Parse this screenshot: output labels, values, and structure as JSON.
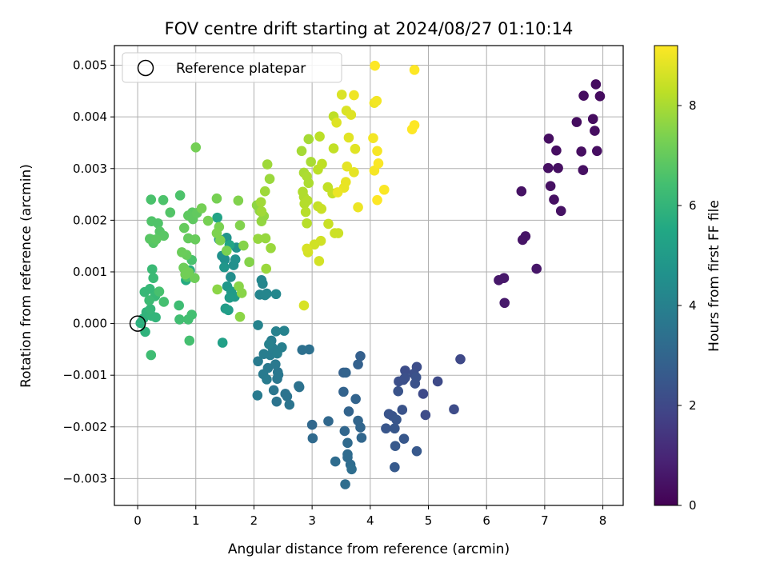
{
  "chart_data": {
    "type": "scatter",
    "title": "FOV centre drift starting at 2024/08/27 01:10:14",
    "xlabel": "Angular distance from reference (arcmin)",
    "ylabel": "Rotation from reference (arcmin)",
    "xlim": [
      -0.4,
      8.35
    ],
    "ylim": [
      -0.00352,
      0.00538
    ],
    "xticks": [
      0,
      1,
      2,
      3,
      4,
      5,
      6,
      7,
      8
    ],
    "xtick_labels": [
      "0",
      "1",
      "2",
      "3",
      "4",
      "5",
      "6",
      "7",
      "8"
    ],
    "yticks": [
      -0.003,
      -0.002,
      -0.001,
      0.0,
      0.001,
      0.002,
      0.003,
      0.004,
      0.005
    ],
    "ytick_labels": [
      "−0.003",
      "−0.002",
      "−0.001",
      "0.000",
      "0.001",
      "0.002",
      "0.003",
      "0.004",
      "0.005"
    ],
    "grid": true,
    "legend": {
      "placement": "top-left",
      "entries": [
        "Reference platepar"
      ]
    },
    "reference_point": {
      "x": 0,
      "y": 0
    },
    "colorbar": {
      "label": "Hours from first FF file",
      "colormap": "viridis",
      "range": [
        0,
        9.2
      ],
      "ticks": [
        0,
        2,
        4,
        6,
        8
      ],
      "tick_labels": [
        "0",
        "2",
        "4",
        "6",
        "8"
      ]
    },
    "points": [
      [
        7.88,
        0.00463,
        0.3
      ],
      [
        7.95,
        0.0044,
        0.3
      ],
      [
        7.67,
        0.00441,
        0.3
      ],
      [
        7.83,
        0.00396,
        0.3
      ],
      [
        7.55,
        0.0039,
        0.3
      ],
      [
        7.86,
        0.00373,
        0.35
      ],
      [
        7.07,
        0.00358,
        0.35
      ],
      [
        7.2,
        0.00335,
        0.35
      ],
      [
        7.63,
        0.00333,
        0.35
      ],
      [
        7.9,
        0.00334,
        0.35
      ],
      [
        7.06,
        0.00301,
        0.4
      ],
      [
        7.23,
        0.00301,
        0.4
      ],
      [
        7.66,
        0.00297,
        0.4
      ],
      [
        7.1,
        0.00266,
        0.4
      ],
      [
        7.16,
        0.0024,
        0.4
      ],
      [
        6.6,
        0.00256,
        0.45
      ],
      [
        7.28,
        0.00218,
        0.45
      ],
      [
        6.67,
        0.00169,
        0.5
      ],
      [
        6.62,
        0.00162,
        0.5
      ],
      [
        6.86,
        0.00106,
        0.55
      ],
      [
        6.3,
        0.00088,
        0.6
      ],
      [
        6.21,
        0.00084,
        0.6
      ],
      [
        6.31,
        0.0004,
        0.65
      ],
      [
        5.55,
        -0.00069,
        2.0
      ],
      [
        5.16,
        -0.00112,
        2.05
      ],
      [
        4.91,
        -0.00136,
        2.05
      ],
      [
        5.44,
        -0.00166,
        2.1
      ],
      [
        4.95,
        -0.00177,
        2.1
      ],
      [
        4.8,
        -0.00084,
        2.15
      ],
      [
        4.6,
        -0.00091,
        2.15
      ],
      [
        4.75,
        -0.00097,
        2.2
      ],
      [
        4.57,
        -0.00109,
        2.2
      ],
      [
        4.49,
        -0.00112,
        2.25
      ],
      [
        4.6,
        -0.00105,
        2.25
      ],
      [
        4.79,
        -0.00104,
        2.3
      ],
      [
        4.77,
        -0.00116,
        2.3
      ],
      [
        4.48,
        -0.00131,
        2.35
      ],
      [
        4.55,
        -0.00167,
        2.35
      ],
      [
        4.38,
        -0.00179,
        2.4
      ],
      [
        4.32,
        -0.00175,
        2.4
      ],
      [
        4.45,
        -0.00186,
        2.45
      ],
      [
        4.27,
        -0.00203,
        2.45
      ],
      [
        4.42,
        -0.00203,
        2.5
      ],
      [
        4.58,
        -0.00223,
        2.5
      ],
      [
        4.43,
        -0.00237,
        2.55
      ],
      [
        4.8,
        -0.00247,
        2.55
      ],
      [
        4.42,
        -0.00278,
        2.6
      ],
      [
        3.83,
        -0.00063,
        2.8
      ],
      [
        3.79,
        -0.00079,
        2.85
      ],
      [
        3.54,
        -0.00095,
        2.85
      ],
      [
        3.58,
        -0.00095,
        2.9
      ],
      [
        3.54,
        -0.00132,
        2.9
      ],
      [
        3.75,
        -0.00146,
        2.95
      ],
      [
        3.63,
        -0.0017,
        2.95
      ],
      [
        3.79,
        -0.00188,
        3.0
      ],
      [
        3.83,
        -0.00201,
        3.0
      ],
      [
        3.85,
        -0.00221,
        3.05
      ],
      [
        3.56,
        -0.00208,
        3.05
      ],
      [
        3.28,
        -0.00189,
        3.1
      ],
      [
        3.0,
        -0.00196,
        3.1
      ],
      [
        3.01,
        -0.00222,
        3.15
      ],
      [
        3.61,
        -0.00231,
        3.15
      ],
      [
        3.61,
        -0.00253,
        3.2
      ],
      [
        3.61,
        -0.00259,
        3.2
      ],
      [
        3.4,
        -0.00267,
        3.25
      ],
      [
        3.66,
        -0.00273,
        3.25
      ],
      [
        3.68,
        -0.00282,
        3.3
      ],
      [
        3.57,
        -0.00311,
        3.3
      ],
      [
        2.95,
        -0.0005,
        3.4
      ],
      [
        2.83,
        -0.00051,
        3.4
      ],
      [
        2.77,
        -0.00121,
        3.45
      ],
      [
        2.78,
        -0.00123,
        3.45
      ],
      [
        2.54,
        -0.00136,
        3.5
      ],
      [
        2.57,
        -0.00141,
        3.5
      ],
      [
        2.61,
        -0.00157,
        3.55
      ],
      [
        2.39,
        -0.00151,
        3.55
      ],
      [
        2.34,
        -0.00129,
        3.6
      ],
      [
        2.41,
        -0.00094,
        3.6
      ],
      [
        2.42,
        -0.00099,
        3.65
      ],
      [
        2.4,
        -0.00107,
        3.65
      ],
      [
        2.37,
        -0.00079,
        3.7
      ],
      [
        2.24,
        -0.00086,
        3.7
      ],
      [
        2.16,
        -0.00098,
        3.75
      ],
      [
        2.06,
        -0.00139,
        3.75
      ],
      [
        2.22,
        -0.00108,
        3.8
      ],
      [
        2.07,
        -0.00073,
        3.8
      ],
      [
        2.17,
        -0.00059,
        3.85
      ],
      [
        2.28,
        -0.00061,
        3.85
      ],
      [
        2.32,
        -0.00047,
        3.9
      ],
      [
        2.3,
        -0.00033,
        3.9
      ],
      [
        2.48,
        -0.00046,
        3.95
      ],
      [
        2.4,
        -0.00058,
        3.95
      ],
      [
        2.26,
        -0.0004,
        4.0
      ],
      [
        2.38,
        -0.00015,
        4.0
      ],
      [
        2.52,
        -0.00014,
        4.05
      ],
      [
        2.07,
        -3e-05,
        4.1
      ],
      [
        2.1,
        0.00056,
        4.15
      ],
      [
        2.22,
        0.00058,
        4.15
      ],
      [
        2.15,
        0.00077,
        4.2
      ],
      [
        2.19,
        0.00055,
        4.2
      ],
      [
        2.38,
        0.00057,
        4.25
      ],
      [
        2.13,
        0.00084,
        4.25
      ],
      [
        1.6,
        0.0009,
        4.5
      ],
      [
        1.65,
        0.00113,
        4.55
      ],
      [
        1.5,
        0.00124,
        4.55
      ],
      [
        1.45,
        0.00131,
        4.6
      ],
      [
        1.68,
        0.00124,
        4.6
      ],
      [
        1.7,
        0.00147,
        4.65
      ],
      [
        1.53,
        0.00166,
        4.7
      ],
      [
        1.4,
        0.00163,
        4.75
      ],
      [
        1.49,
        0.00109,
        4.8
      ],
      [
        1.54,
        0.00072,
        4.85
      ],
      [
        1.61,
        0.00062,
        4.9
      ],
      [
        1.67,
        0.00052,
        4.95
      ],
      [
        1.58,
        0.0005,
        5.0
      ],
      [
        1.51,
        0.00029,
        5.05
      ],
      [
        1.56,
        0.00026,
        5.1
      ],
      [
        1.46,
        -0.00037,
        5.2
      ],
      [
        1.37,
        0.00205,
        5.3
      ],
      [
        1.58,
        0.00152,
        5.4
      ],
      [
        0.83,
        0.00084,
        5.6
      ],
      [
        0.9,
        0.00103,
        5.7
      ],
      [
        0.05,
        1e-05,
        5.8
      ],
      [
        0.1,
        0.0001,
        5.85
      ],
      [
        0.13,
        -0.00016,
        5.9
      ],
      [
        0.15,
        0.00022,
        5.95
      ],
      [
        0.24,
        0.00015,
        6.0
      ],
      [
        0.31,
        0.00012,
        6.0
      ],
      [
        0.22,
        0.00028,
        6.05
      ],
      [
        0.12,
        0.00061,
        6.1
      ],
      [
        0.21,
        0.00067,
        6.1
      ],
      [
        0.3,
        0.00053,
        6.15
      ],
      [
        0.27,
        0.00088,
        6.2
      ],
      [
        0.25,
        0.00105,
        6.2
      ],
      [
        0.2,
        0.00045,
        6.25
      ],
      [
        0.23,
        -0.00061,
        6.3
      ],
      [
        0.71,
        0.00035,
        6.3
      ],
      [
        0.72,
        8e-05,
        6.35
      ],
      [
        0.87,
        8e-05,
        6.4
      ],
      [
        0.93,
        0.00017,
        6.4
      ],
      [
        0.89,
        -0.00033,
        6.45
      ],
      [
        0.45,
        0.00042,
        6.45
      ],
      [
        0.37,
        0.00062,
        6.5
      ],
      [
        0.85,
        0.0009,
        6.5
      ],
      [
        0.93,
        0.00123,
        6.55
      ],
      [
        0.23,
        0.0024,
        6.55
      ],
      [
        0.44,
        0.00239,
        6.6
      ],
      [
        0.73,
        0.00248,
        6.6
      ],
      [
        0.24,
        0.00198,
        6.65
      ],
      [
        0.35,
        0.00194,
        6.65
      ],
      [
        0.56,
        0.00215,
        6.7
      ],
      [
        0.27,
        0.00162,
        6.7
      ],
      [
        0.38,
        0.00178,
        6.75
      ],
      [
        0.27,
        0.00156,
        6.75
      ],
      [
        0.45,
        0.0017,
        6.8
      ],
      [
        0.21,
        0.00164,
        6.8
      ],
      [
        0.32,
        0.00163,
        6.85
      ],
      [
        0.94,
        0.00215,
        6.85
      ],
      [
        0.87,
        0.00209,
        6.9
      ],
      [
        0.95,
        0.00202,
        6.9
      ],
      [
        1.02,
        0.00214,
        6.95
      ],
      [
        0.8,
        0.00185,
        7.0
      ],
      [
        0.87,
        0.00165,
        7.0
      ],
      [
        0.99,
        0.00163,
        7.05
      ],
      [
        0.84,
        0.00133,
        7.05
      ],
      [
        0.76,
        0.00138,
        7.1
      ],
      [
        0.79,
        0.00108,
        7.1
      ],
      [
        0.98,
        0.00088,
        7.15
      ],
      [
        0.8,
        0.00107,
        7.15
      ],
      [
        0.88,
        0.00099,
        7.2
      ],
      [
        0.82,
        0.00095,
        7.2
      ],
      [
        1.0,
        0.00341,
        7.25
      ],
      [
        1.1,
        0.00223,
        7.25
      ],
      [
        1.36,
        0.00242,
        7.3
      ],
      [
        1.21,
        0.00199,
        7.3
      ],
      [
        1.4,
        0.00187,
        7.35
      ],
      [
        1.53,
        0.00141,
        7.35
      ],
      [
        1.42,
        0.00161,
        7.4
      ],
      [
        1.36,
        0.00175,
        7.4
      ],
      [
        1.73,
        0.00238,
        7.45
      ],
      [
        1.76,
        0.0019,
        7.45
      ],
      [
        1.82,
        0.00151,
        7.5
      ],
      [
        1.92,
        0.00119,
        7.5
      ],
      [
        1.74,
        0.00072,
        7.55
      ],
      [
        1.79,
        0.00059,
        7.55
      ],
      [
        1.37,
        0.00066,
        7.6
      ],
      [
        1.76,
        0.00013,
        7.6
      ],
      [
        2.05,
        0.00229,
        7.65
      ],
      [
        2.1,
        0.00218,
        7.65
      ],
      [
        2.17,
        0.00208,
        7.7
      ],
      [
        2.13,
        0.00198,
        7.7
      ],
      [
        2.07,
        0.00164,
        7.75
      ],
      [
        2.2,
        0.00165,
        7.75
      ],
      [
        2.29,
        0.00146,
        7.8
      ],
      [
        2.21,
        0.00106,
        7.8
      ],
      [
        2.27,
        0.0028,
        7.8
      ],
      [
        2.23,
        0.00308,
        7.85
      ],
      [
        2.19,
        0.00256,
        7.85
      ],
      [
        2.12,
        0.00235,
        7.9
      ],
      [
        2.13,
        0.00217,
        7.9
      ],
      [
        2.82,
        0.00334,
        7.95
      ],
      [
        2.94,
        0.00357,
        7.95
      ],
      [
        2.86,
        0.00292,
        8.0
      ],
      [
        2.98,
        0.00313,
        8.0
      ],
      [
        2.91,
        0.00285,
        8.05
      ],
      [
        2.94,
        0.00272,
        8.05
      ],
      [
        2.84,
        0.00255,
        8.1
      ],
      [
        2.86,
        0.00245,
        8.1
      ],
      [
        2.87,
        0.00232,
        8.15
      ],
      [
        2.92,
        0.00238,
        8.15
      ],
      [
        2.89,
        0.00216,
        8.2
      ],
      [
        2.91,
        0.00194,
        8.2
      ],
      [
        3.1,
        0.00298,
        8.25
      ],
      [
        3.13,
        0.00362,
        8.25
      ],
      [
        3.17,
        0.00309,
        8.3
      ],
      [
        3.37,
        0.00401,
        8.3
      ],
      [
        3.37,
        0.00339,
        8.35
      ],
      [
        3.27,
        0.00264,
        8.35
      ],
      [
        3.35,
        0.00252,
        8.4
      ],
      [
        3.1,
        0.00227,
        8.4
      ],
      [
        3.16,
        0.00222,
        8.45
      ],
      [
        3.28,
        0.00193,
        8.45
      ],
      [
        3.39,
        0.00175,
        8.5
      ],
      [
        3.45,
        0.00175,
        8.5
      ],
      [
        3.15,
        0.0016,
        8.55
      ],
      [
        3.04,
        0.00153,
        8.55
      ],
      [
        3.12,
        0.00121,
        8.6
      ],
      [
        2.93,
        0.00138,
        8.6
      ],
      [
        2.91,
        0.00145,
        8.65
      ],
      [
        2.86,
        0.00035,
        8.65
      ],
      [
        3.51,
        0.00443,
        8.7
      ],
      [
        3.59,
        0.00412,
        8.7
      ],
      [
        3.67,
        0.00404,
        8.75
      ],
      [
        3.42,
        0.00389,
        8.75
      ],
      [
        3.63,
        0.0036,
        8.8
      ],
      [
        3.74,
        0.00338,
        8.8
      ],
      [
        3.6,
        0.00304,
        8.85
      ],
      [
        3.72,
        0.00293,
        8.85
      ],
      [
        3.58,
        0.00274,
        8.9
      ],
      [
        3.55,
        0.00263,
        8.9
      ],
      [
        3.44,
        0.00254,
        8.95
      ],
      [
        3.79,
        0.00225,
        8.95
      ],
      [
        3.72,
        0.00442,
        9.0
      ],
      [
        4.07,
        0.00427,
        9.0
      ],
      [
        4.11,
        0.00431,
        9.05
      ],
      [
        4.05,
        0.00359,
        9.05
      ],
      [
        4.12,
        0.00334,
        9.1
      ],
      [
        4.07,
        0.00296,
        9.1
      ],
      [
        4.14,
        0.0031,
        9.15
      ],
      [
        4.24,
        0.00259,
        9.15
      ],
      [
        4.12,
        0.00239,
        9.2
      ],
      [
        4.08,
        0.00499,
        9.2
      ],
      [
        4.76,
        0.00491,
        9.2
      ],
      [
        4.76,
        0.00384,
        9.2
      ],
      [
        4.72,
        0.00376,
        9.2
      ]
    ]
  }
}
